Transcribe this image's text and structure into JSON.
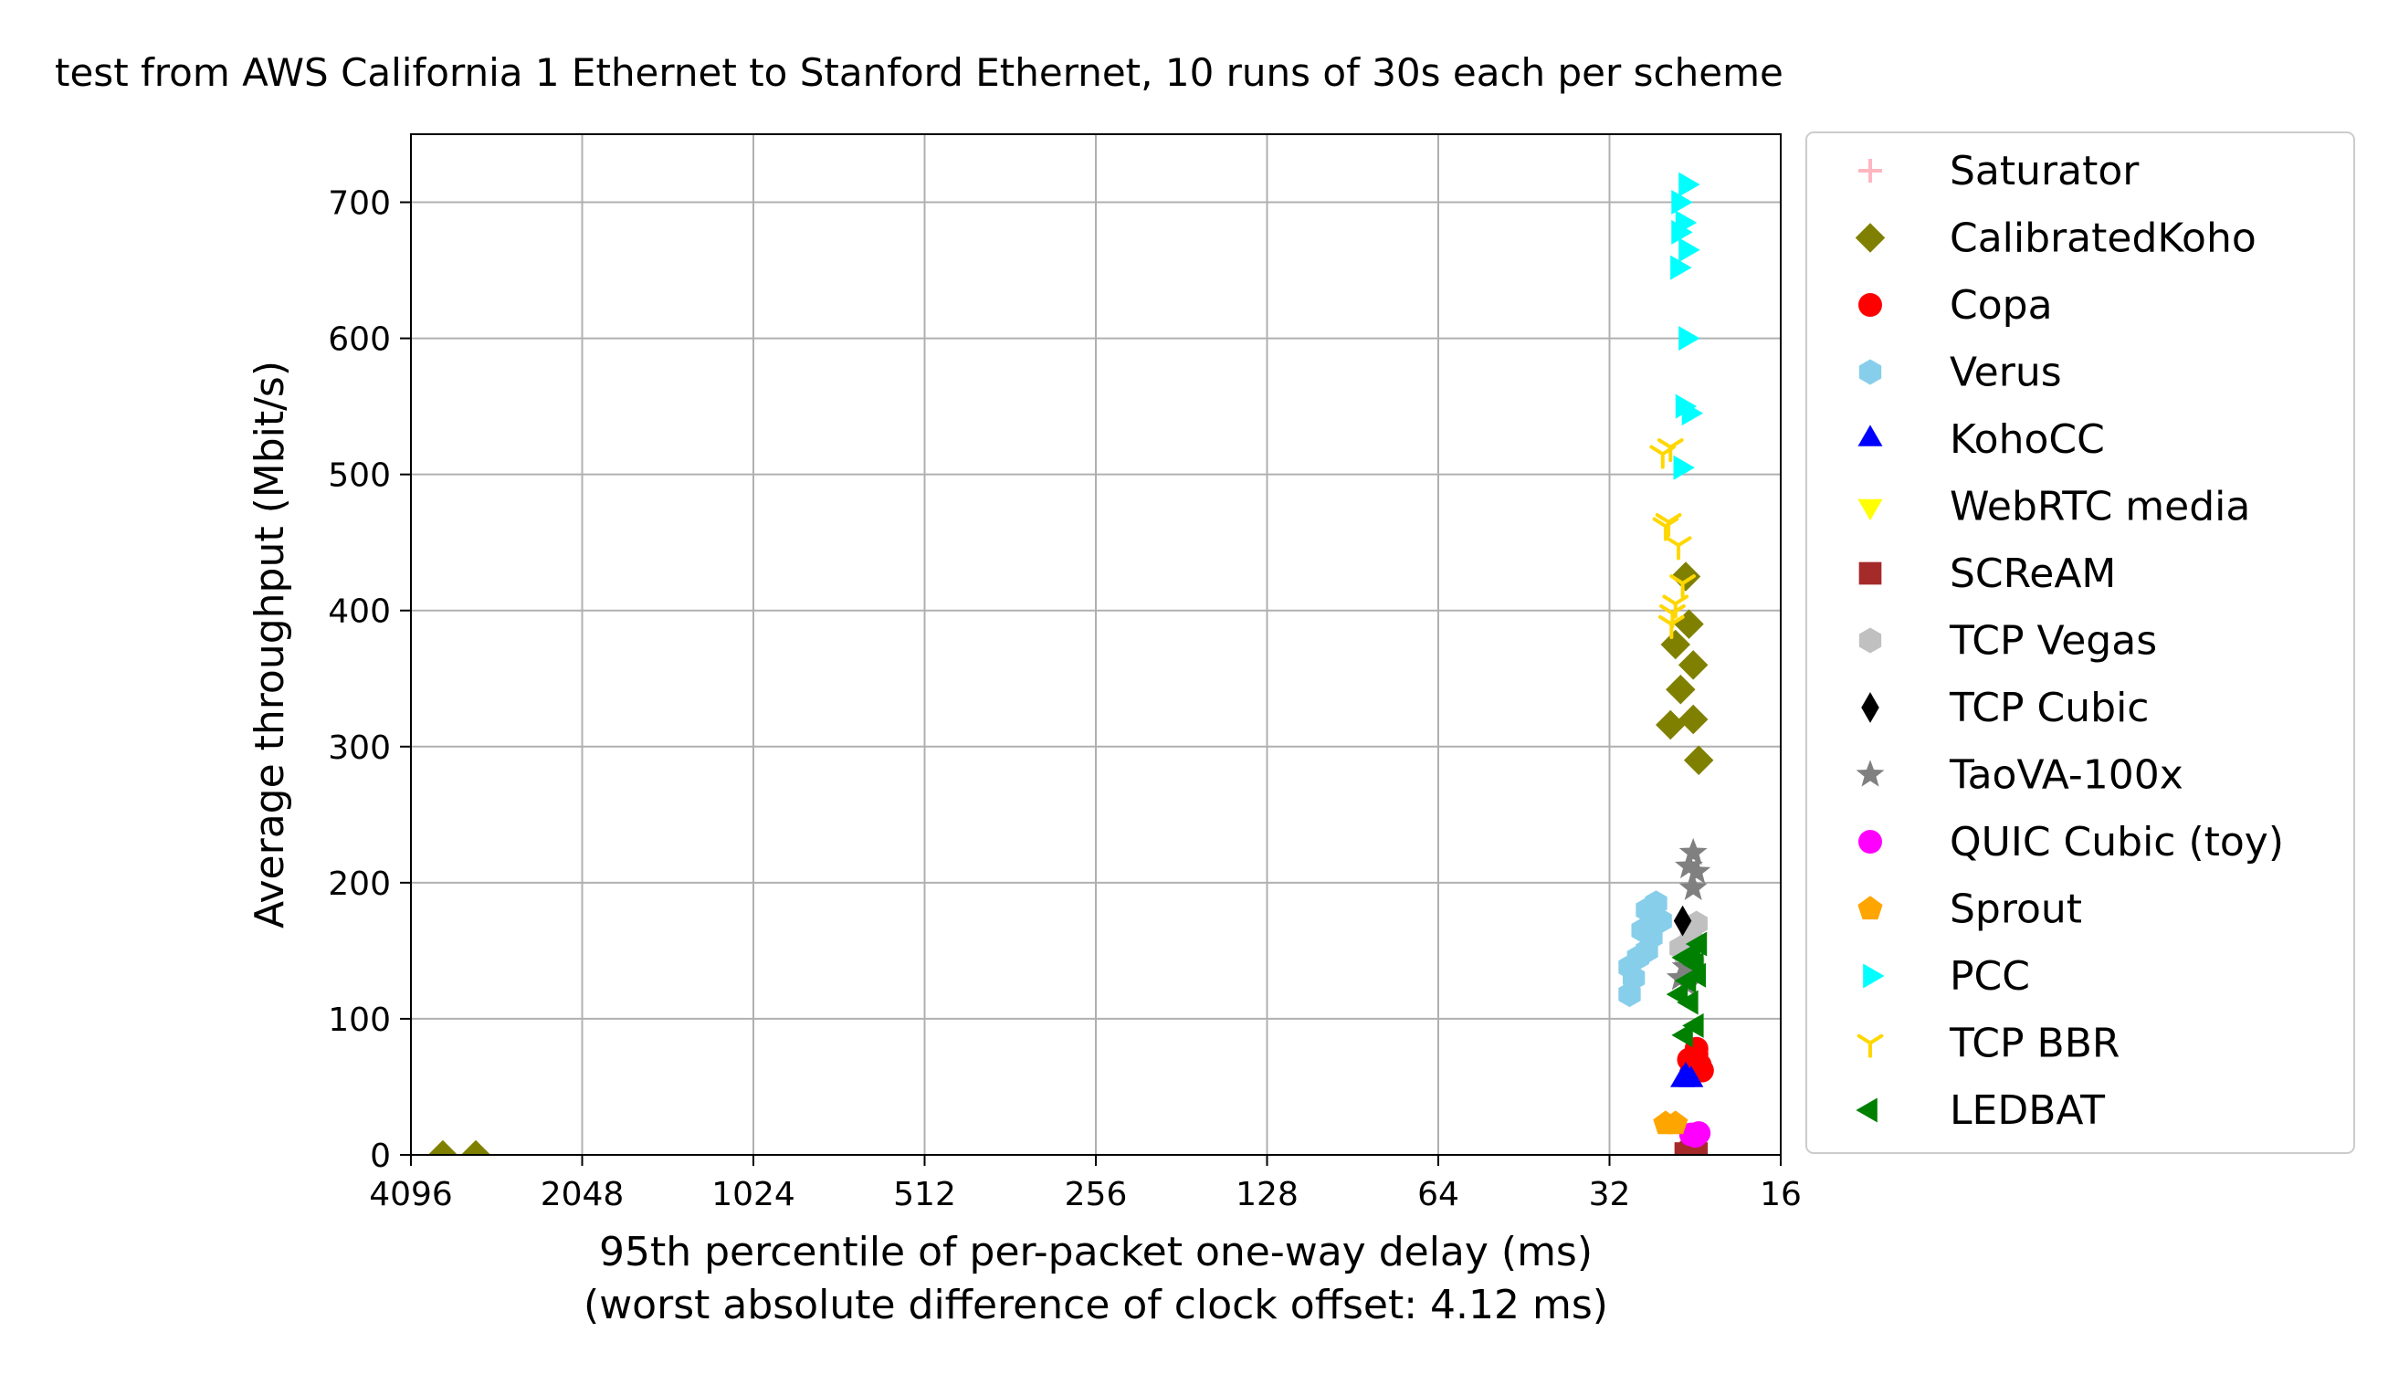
{
  "chart_data": {
    "type": "scatter",
    "title": "test from AWS California 1 Ethernet to Stanford Ethernet, 10 runs of 30s each per scheme",
    "xlabel": "95th percentile of per-packet one-way delay (ms)",
    "xlabel2": "(worst absolute difference of clock offset: 4.12 ms)",
    "ylabel": "Average throughput (Mbit/s)",
    "xscale": "log2",
    "xinverted": true,
    "xlim": [
      4096,
      16
    ],
    "ylim": [
      0,
      750
    ],
    "xticks": [
      4096,
      2048,
      1024,
      512,
      256,
      128,
      64,
      32,
      16
    ],
    "yticks": [
      0,
      100,
      200,
      300,
      400,
      500,
      600,
      700
    ],
    "grid": true,
    "legend_position": "outside-right",
    "series": [
      {
        "name": "Saturator",
        "marker": "plus",
        "color": "#ffb6c1",
        "points": []
      },
      {
        "name": "CalibratedKoho",
        "marker": "diamond",
        "color": "#808000",
        "points": [
          [
            3600,
            0
          ],
          [
            3150,
            0
          ],
          [
            23.5,
            425
          ],
          [
            23.2,
            390
          ],
          [
            24.5,
            375
          ],
          [
            22.8,
            360
          ],
          [
            24.0,
            342
          ],
          [
            22.8,
            320
          ],
          [
            25.0,
            316
          ],
          [
            22.3,
            290
          ]
        ]
      },
      {
        "name": "Copa",
        "marker": "circle",
        "color": "#ff0000",
        "points": [
          [
            22.5,
            78
          ],
          [
            23.2,
            70
          ],
          [
            22.2,
            66
          ],
          [
            22.0,
            62
          ],
          [
            23.0,
            60
          ],
          [
            22.5,
            74
          ]
        ]
      },
      {
        "name": "Verus",
        "marker": "hexagon",
        "color": "#87ceeb",
        "points": [
          [
            26.5,
            185
          ],
          [
            27.5,
            180
          ],
          [
            26.0,
            172
          ],
          [
            28.0,
            165
          ],
          [
            27.0,
            160
          ],
          [
            27.5,
            150
          ],
          [
            28.5,
            145
          ],
          [
            29.5,
            138
          ],
          [
            29.0,
            130
          ],
          [
            29.5,
            118
          ]
        ]
      },
      {
        "name": "KohoCC",
        "marker": "triangle-up",
        "color": "#0000ff",
        "points": [
          [
            23.8,
            55
          ],
          [
            23.0,
            55
          ],
          [
            23.5,
            58
          ]
        ]
      },
      {
        "name": "WebRTC media",
        "marker": "triangle-down",
        "color": "#ffff00",
        "points": []
      },
      {
        "name": "SCReAM",
        "marker": "square",
        "color": "#a52a2a",
        "points": [
          [
            23.5,
            1
          ],
          [
            22.5,
            1
          ],
          [
            23.0,
            2
          ]
        ]
      },
      {
        "name": "TCP Vegas",
        "marker": "hexagon",
        "color": "#c0c0c0",
        "points": [
          [
            22.5,
            170
          ],
          [
            23.0,
            160
          ],
          [
            24.0,
            152
          ],
          [
            23.5,
            145
          ],
          [
            22.8,
            140
          ]
        ]
      },
      {
        "name": "TCP Cubic",
        "marker": "thin-diamond",
        "color": "#000000",
        "points": [
          [
            23.8,
            172
          ]
        ]
      },
      {
        "name": "TaoVA-100x",
        "marker": "star",
        "color": "#808080",
        "points": [
          [
            22.8,
            222
          ],
          [
            23.2,
            212
          ],
          [
            22.5,
            208
          ],
          [
            22.8,
            196
          ],
          [
            23.5,
            138
          ],
          [
            24.0,
            130
          ],
          [
            23.3,
            125
          ]
        ]
      },
      {
        "name": "QUIC Cubic (toy)",
        "marker": "circle",
        "color": "#ff00ff",
        "points": [
          [
            22.3,
            16
          ],
          [
            23.0,
            15
          ],
          [
            22.6,
            14
          ]
        ]
      },
      {
        "name": "Sprout",
        "marker": "pentagon",
        "color": "#ffa500",
        "points": [
          [
            25.5,
            23
          ],
          [
            24.5,
            23
          ]
        ]
      },
      {
        "name": "PCC",
        "marker": "triangle-right",
        "color": "#00ffff",
        "points": [
          [
            23.5,
            713
          ],
          [
            24.2,
            700
          ],
          [
            23.8,
            685
          ],
          [
            24.2,
            678
          ],
          [
            23.5,
            665
          ],
          [
            24.3,
            652
          ],
          [
            23.5,
            600
          ],
          [
            23.8,
            550
          ],
          [
            23.2,
            545
          ],
          [
            24.0,
            505
          ]
        ]
      },
      {
        "name": "TCP BBR",
        "marker": "tri-down",
        "color": "#ffd700",
        "points": [
          [
            25.0,
            520
          ],
          [
            25.8,
            515
          ],
          [
            25.2,
            465
          ],
          [
            25.5,
            462
          ],
          [
            24.2,
            448
          ],
          [
            23.8,
            420
          ],
          [
            24.5,
            405
          ],
          [
            24.8,
            398
          ],
          [
            24.9,
            390
          ]
        ]
      },
      {
        "name": "LEDBAT",
        "marker": "triangle-left",
        "color": "#008000",
        "points": [
          [
            22.2,
            155
          ],
          [
            22.8,
            148
          ],
          [
            23.5,
            145
          ],
          [
            22.5,
            140
          ],
          [
            22.3,
            132
          ],
          [
            23.2,
            128
          ],
          [
            24.0,
            118
          ],
          [
            23.0,
            112
          ],
          [
            22.5,
            95
          ],
          [
            23.5,
            88
          ]
        ]
      }
    ]
  }
}
